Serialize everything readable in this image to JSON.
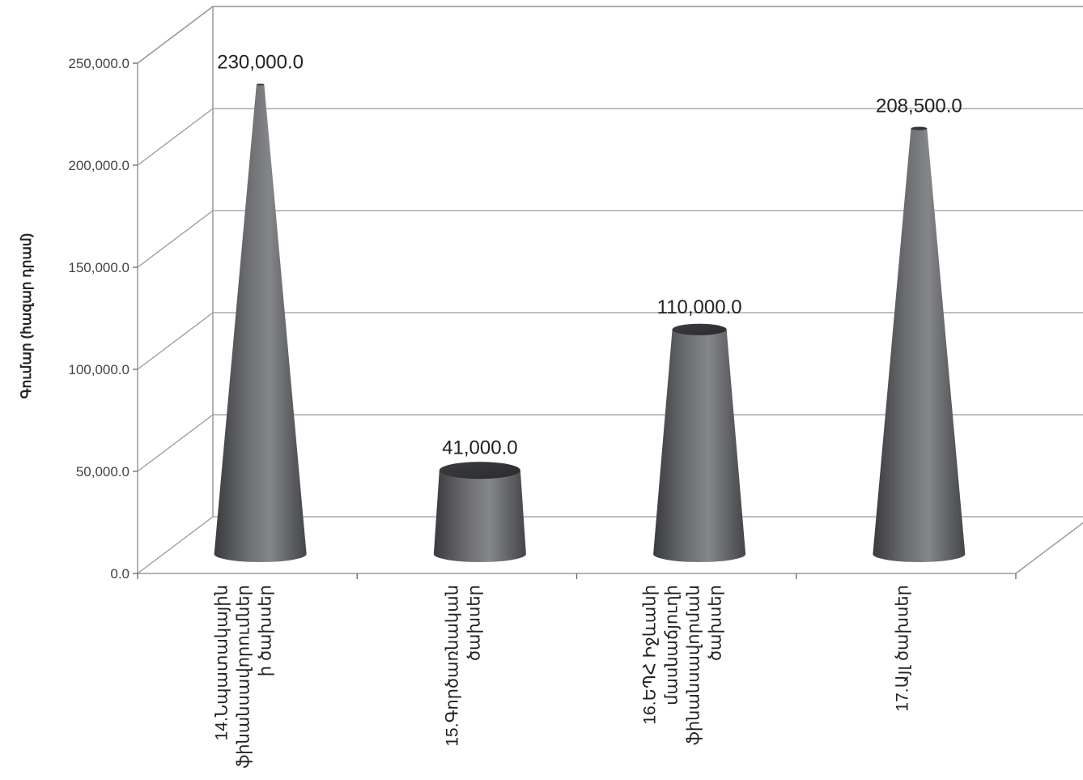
{
  "chart_data": {
    "type": "bar",
    "shape": "cone-3d",
    "title": "",
    "xlabel": "",
    "ylabel": "Գումար (հազար դրամ)",
    "ylim": [
      0,
      250000
    ],
    "yticks": [
      "0.0",
      "50,000.0",
      "100,000.0",
      "150,000.0",
      "200,000.0",
      "250,000.0"
    ],
    "grid": true,
    "legend": "none",
    "bar_color": "#5e5f63",
    "categories": [
      [
        "14.Նպատակային",
        "ֆինանսավորումներ",
        "ի ծախսեր"
      ],
      [
        "15.Գործառնական",
        "ծախսեր"
      ],
      [
        "16.ԵՊՀ Իջևանի",
        "մասնաճյուղի",
        "ֆինանսավորման",
        "ծախսեր"
      ],
      [
        "17.Այլ ծախսեր"
      ]
    ],
    "values": [
      230000,
      41000,
      110000,
      208500
    ],
    "value_labels": [
      "230,000.0",
      "41,000.0",
      "110,000.0",
      "208,500.0"
    ]
  }
}
